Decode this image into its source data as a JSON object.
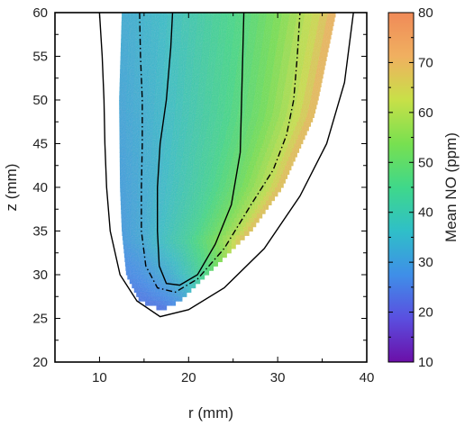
{
  "chart_data": {
    "type": "heatmap",
    "title": "",
    "xlabel": "r (mm)",
    "ylabel": "z (mm)",
    "xlim": [
      5,
      40
    ],
    "ylim": [
      20,
      60
    ],
    "xticks": [
      10,
      20,
      30,
      40
    ],
    "yticks": [
      20,
      25,
      30,
      35,
      40,
      45,
      50,
      55,
      60
    ],
    "grid": false,
    "colorbar": {
      "label": "Mean NO (ppm)",
      "range": [
        10,
        80
      ],
      "ticks": [
        10,
        20,
        30,
        40,
        50,
        60,
        70,
        80
      ],
      "colormap": "rainbow-like: purple-blue-cyan-green-yellow-orange",
      "color_stops": [
        "#6b0fa8",
        "#5a4fe0",
        "#3f8fe8",
        "#2fbfc8",
        "#3fd88a",
        "#78e050",
        "#c8e048",
        "#f0b060",
        "#f08a58"
      ]
    },
    "field": {
      "description_values": {
        "left_edge_r": [
          [
            60,
            12.5
          ],
          [
            50,
            12.2
          ],
          [
            40,
            12.3
          ],
          [
            35,
            12.5
          ],
          [
            30,
            13.0
          ],
          [
            27,
            14.5
          ],
          [
            26,
            17.0
          ]
        ],
        "right_edge_r": [
          [
            60,
            36.5
          ],
          [
            50,
            34.5
          ],
          [
            48,
            34.0
          ],
          [
            40,
            30.5
          ],
          [
            35,
            27.0
          ],
          [
            30,
            22.0
          ],
          [
            27,
            19.0
          ],
          [
            26,
            17.0
          ]
        ],
        "no_value_by_r_at_z50": [
          [
            13,
            31
          ],
          [
            17,
            34
          ],
          [
            21,
            39
          ],
          [
            25,
            44
          ],
          [
            29,
            52
          ],
          [
            33,
            62
          ],
          [
            35,
            70
          ]
        ],
        "no_value_at_tip": 26
      }
    },
    "contours": [
      {
        "style": "solid",
        "points": [
          [
            10.0,
            60
          ],
          [
            10.3,
            55
          ],
          [
            10.5,
            50
          ],
          [
            10.6,
            45
          ],
          [
            10.8,
            40
          ],
          [
            11.2,
            35
          ],
          [
            12.3,
            30
          ],
          [
            14.2,
            27
          ],
          [
            16.8,
            25.2
          ],
          [
            20.0,
            26.0
          ],
          [
            24.0,
            28.5
          ],
          [
            28.5,
            33.0
          ],
          [
            32.5,
            39.0
          ],
          [
            35.5,
            45.0
          ],
          [
            37.5,
            52.0
          ],
          [
            38.5,
            60
          ]
        ]
      },
      {
        "style": "dashdot",
        "points": [
          [
            14.5,
            60
          ],
          [
            14.6,
            55
          ],
          [
            14.8,
            50
          ],
          [
            14.8,
            45
          ],
          [
            14.7,
            40
          ],
          [
            14.7,
            35
          ],
          [
            15.2,
            31
          ],
          [
            16.5,
            28.5
          ],
          [
            18.5,
            28.0
          ],
          [
            21.0,
            29.5
          ],
          [
            24.0,
            33.0
          ],
          [
            27.0,
            38.0
          ],
          [
            29.5,
            42.0
          ],
          [
            31.0,
            46.0
          ],
          [
            31.8,
            50.0
          ],
          [
            32.2,
            55.0
          ],
          [
            32.5,
            60
          ]
        ]
      },
      {
        "style": "solid",
        "points": [
          [
            18.2,
            60
          ],
          [
            18.0,
            56.0
          ],
          [
            17.5,
            50.0
          ],
          [
            16.8,
            45.0
          ],
          [
            16.5,
            40.0
          ],
          [
            16.5,
            35.0
          ],
          [
            16.7,
            31.0
          ],
          [
            17.5,
            29.0
          ],
          [
            19.0,
            28.8
          ],
          [
            21.0,
            30.0
          ],
          [
            23.0,
            33.5
          ],
          [
            24.8,
            38.0
          ],
          [
            25.8,
            44.0
          ],
          [
            26.0,
            52.0
          ],
          [
            26.2,
            60
          ]
        ]
      }
    ]
  }
}
